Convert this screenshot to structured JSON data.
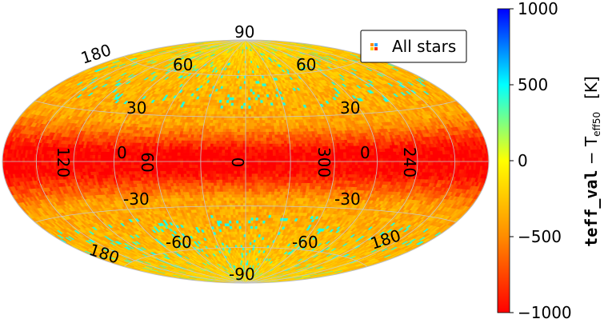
{
  "chart_data": {
    "type": "heatmap",
    "projection": "hammer-aitoff",
    "title": "",
    "legend": {
      "label": "All stars",
      "placement": "top-right"
    },
    "longitude_tick_labels": [
      "120",
      "60",
      "0",
      "300",
      "240"
    ],
    "latitude_tick_labels": [
      "90",
      "60",
      "30",
      "0",
      "-30",
      "-60",
      "-90"
    ],
    "edge_longitude_labels": [
      "180",
      "180",
      "180",
      "180"
    ],
    "grid": true,
    "map_summary": {
      "value_near_galactic_plane": -1000,
      "value_at_mid_latitudes": -400,
      "value_near_poles": -150
    },
    "colorbar": {
      "label_main": "teff_val",
      "label_sep": " − T",
      "label_sub": "eff50",
      "label_unit": "[K]",
      "range": [
        -1000,
        1000
      ],
      "ticks": [
        "1000",
        "500",
        "0",
        "−500",
        "−1000"
      ],
      "tick_values": [
        1000,
        500,
        0,
        -500,
        -1000
      ],
      "colors": [
        "#ff0000",
        "#ff8c00",
        "#ffff00",
        "#00ffff",
        "#0000ff"
      ]
    }
  }
}
